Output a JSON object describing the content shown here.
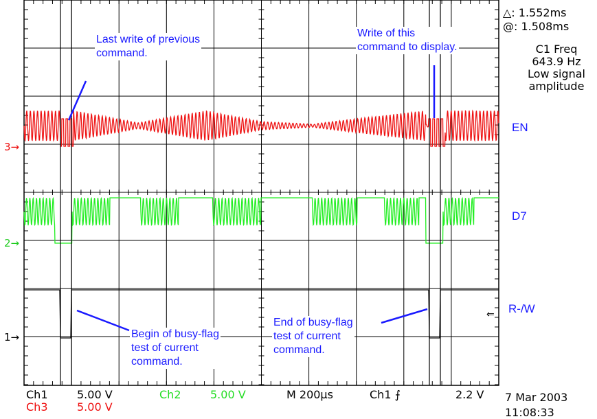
{
  "readout": {
    "delta": "△: 1.552ms",
    "at": "@: 1.508ms",
    "freq_lines": [
      "C1 Freq",
      "643.9 Hz",
      "Low signal",
      "amplitude"
    ]
  },
  "signals": {
    "en": "EN",
    "d7": "D7",
    "rw": "R-/W"
  },
  "channel_markers": {
    "ch3": "3",
    "ch2": "2",
    "ch1": "1"
  },
  "annotations": {
    "last_write": [
      "Last write of previous",
      "command."
    ],
    "this_write": [
      "Write of this",
      "command to display."
    ],
    "begin_busy": [
      "Begin of busy-flag",
      "test of current",
      "command."
    ],
    "end_busy": [
      "End of busy-flag",
      "test of current",
      "command."
    ]
  },
  "status_bar": {
    "ch1_label": "Ch1",
    "ch1_scale": "5.00 V",
    "ch2_label": "Ch2",
    "ch2_scale": "5.00 V",
    "ch3_label": "Ch3",
    "ch3_scale": "5.00 V",
    "timebase": "M 200μs",
    "trigger_src": "Ch1",
    "trigger_level": "2.2 V",
    "date": "7 Mar 2003",
    "time": "11:08:33"
  },
  "colors": {
    "ch3": "#ee1111",
    "ch2": "#22ee22",
    "ch1": "#000000",
    "annotation": "#1a1aff"
  }
}
